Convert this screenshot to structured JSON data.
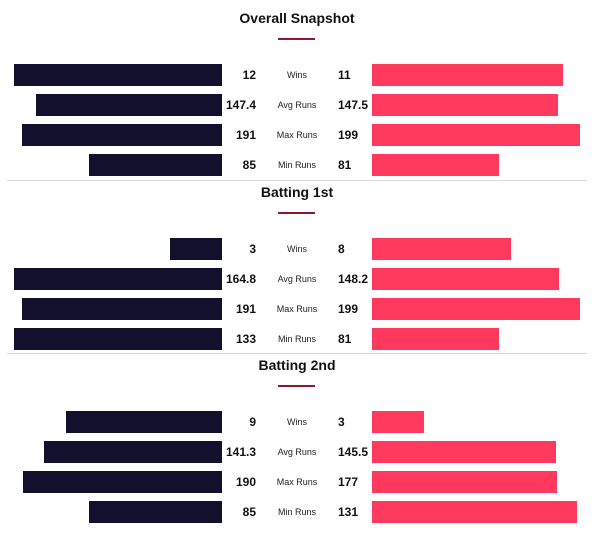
{
  "chart_data": [
    {
      "type": "bar",
      "orientation": "horizontal-diverging",
      "title": "Overall Snapshot",
      "categories": [
        "Wins",
        "Avg Runs",
        "Max Runs",
        "Min Runs"
      ],
      "series": [
        {
          "values": [
            12,
            147.4,
            191,
            85
          ],
          "color": "#13102e"
        },
        {
          "values": [
            11,
            147.5,
            199,
            81
          ],
          "color": "#ff3a5e"
        }
      ]
    },
    {
      "type": "bar",
      "orientation": "horizontal-diverging",
      "title": "Batting 1st",
      "categories": [
        "Wins",
        "Avg Runs",
        "Max Runs",
        "Min Runs"
      ],
      "series": [
        {
          "values": [
            3,
            164.8,
            191,
            133
          ],
          "color": "#13102e"
        },
        {
          "values": [
            8,
            148.2,
            199,
            81
          ],
          "color": "#ff3a5e"
        }
      ]
    },
    {
      "type": "bar",
      "orientation": "horizontal-diverging",
      "title": "Batting 2nd",
      "categories": [
        "Wins",
        "Avg Runs",
        "Max Runs",
        "Min Runs"
      ],
      "series": [
        {
          "values": [
            9,
            141.3,
            190,
            85
          ],
          "color": "#13102e"
        },
        {
          "values": [
            3,
            145.5,
            177,
            131
          ],
          "color": "#ff3a5e"
        }
      ]
    }
  ]
}
